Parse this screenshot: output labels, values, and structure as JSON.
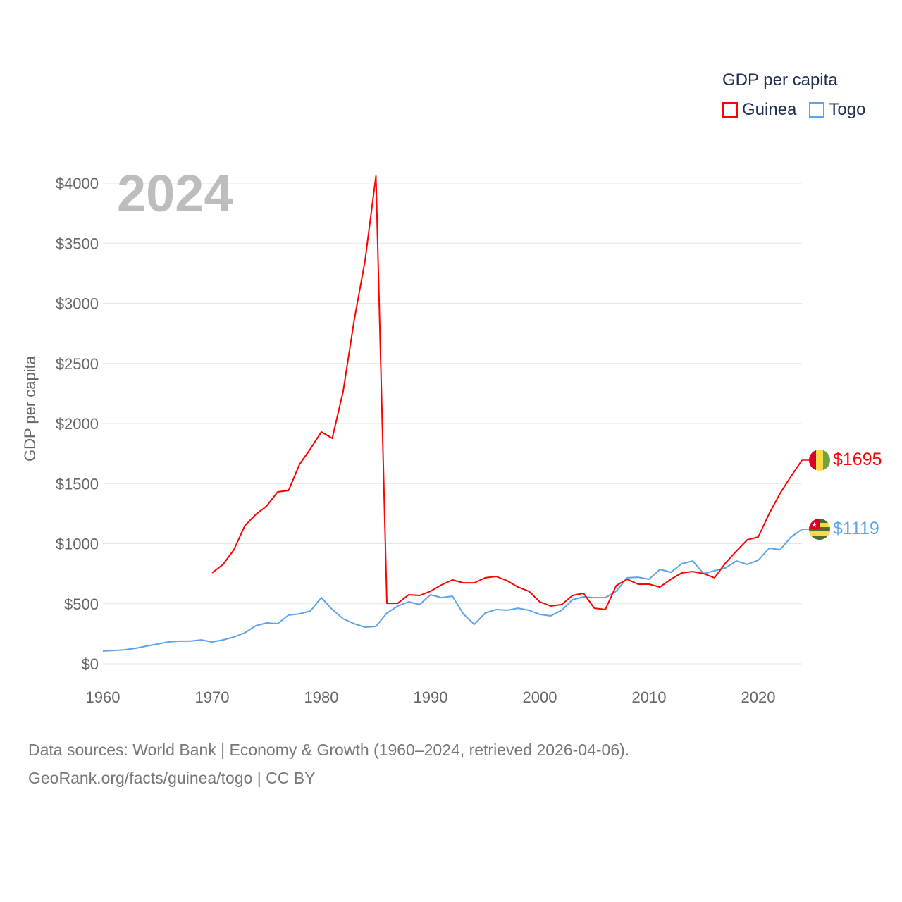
{
  "chart_data": {
    "type": "line",
    "title": "GDP per capita",
    "year_label": "2024",
    "ylabel": "GDP per capita",
    "xlabel": "",
    "xlim": [
      1960,
      2024
    ],
    "ylim": [
      0,
      4000
    ],
    "x_ticks": [
      1960,
      1970,
      1980,
      1990,
      2000,
      2010,
      2020
    ],
    "y_ticks": [
      0,
      500,
      1000,
      1500,
      2000,
      2500,
      3000,
      3500,
      4000
    ],
    "y_tick_labels": [
      "$0",
      "$500",
      "$1000",
      "$1500",
      "$2000",
      "$2500",
      "$3000",
      "$3500",
      "$4000"
    ],
    "grid": true,
    "legend_placement": "top-right",
    "series": [
      {
        "name": "Guinea",
        "color": "#ff0000",
        "end_label": "$1695",
        "start_year": 1970,
        "values": [
          757,
          827,
          950,
          1150,
          1243,
          1314,
          1431,
          1443,
          1660,
          1789,
          1930,
          1877,
          2270,
          2856,
          3355,
          4059,
          504,
          504,
          575,
          569,
          604,
          657,
          698,
          674,
          674,
          716,
          727,
          692,
          639,
          604,
          516,
          481,
          493,
          569,
          587,
          463,
          452,
          651,
          704,
          663,
          663,
          639,
          704,
          757,
          768,
          751,
          716,
          839,
          938,
          1032,
          1056,
          1249,
          1419,
          1560,
          1695
        ]
      },
      {
        "name": "Togo",
        "color": "#5ba4ec",
        "end_label": "$1119",
        "start_year": 1960,
        "values": [
          106,
          111,
          117,
          129,
          147,
          164,
          182,
          188,
          188,
          199,
          182,
          199,
          223,
          258,
          317,
          340,
          334,
          405,
          416,
          440,
          551,
          452,
          375,
          334,
          305,
          311,
          422,
          481,
          516,
          493,
          575,
          551,
          563,
          416,
          328,
          422,
          452,
          446,
          463,
          446,
          411,
          399,
          446,
          534,
          557,
          551,
          551,
          604,
          716,
          721,
          704,
          786,
          762,
          833,
          856,
          751,
          774,
          798,
          856,
          827,
          862,
          962,
          950,
          1056,
          1119
        ]
      }
    ]
  },
  "footer": {
    "line1": "Data sources: World Bank | Economy & Growth (1960–2024, retrieved 2026-04-06).",
    "line2": "GeoRank.org/facts/guinea/togo | CC BY"
  }
}
